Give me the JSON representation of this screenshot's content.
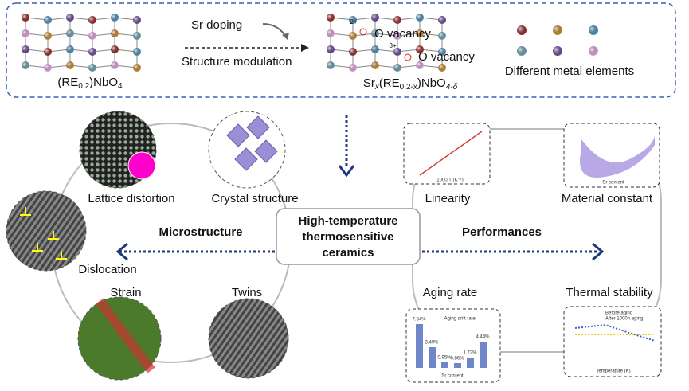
{
  "top": {
    "formula_left": [
      "(RE",
      "0.2",
      ")NbO",
      "4"
    ],
    "sr_doping": "Sr doping",
    "structure_modulation": "Structure modulation",
    "formula_right": [
      "Sr",
      "x",
      "(RE",
      "0.2-x",
      ")NbO",
      "4-δ"
    ],
    "o_vacancy": [
      "O vacancy",
      "O vacancy"
    ],
    "ion_labels": [
      "2+",
      "3+"
    ],
    "legend": "Different metal elements"
  },
  "center": {
    "lines": [
      "High-temperature",
      "thermosensitive",
      "ceramics"
    ]
  },
  "branches": {
    "left": "Microstructure",
    "right": "Performances"
  },
  "nodes": [
    {
      "label": "Lattice distortion"
    },
    {
      "label": "Crystal structure"
    },
    {
      "label": "Dislocation"
    },
    {
      "label": "Strain"
    },
    {
      "label": "Twins"
    },
    {
      "label": "Linearity"
    },
    {
      "label": "Material constant"
    },
    {
      "label": "Aging rate"
    },
    {
      "label": "Thermal stability"
    }
  ],
  "insets": {
    "linearity_xlabel": "1000/T (K⁻¹)",
    "material_xlabel": "Sr content",
    "aging_title": "Aging drift rate:",
    "aging_values": [
      "7.34%",
      "3.49%",
      "0.95%",
      "0.86%",
      "1.72%",
      "4.44%"
    ],
    "aging_xlabel": "Sr content",
    "thermal_legend": [
      "Before aging",
      "After 1000h aging"
    ],
    "thermal_xlabel": "Temperature (K)"
  }
}
